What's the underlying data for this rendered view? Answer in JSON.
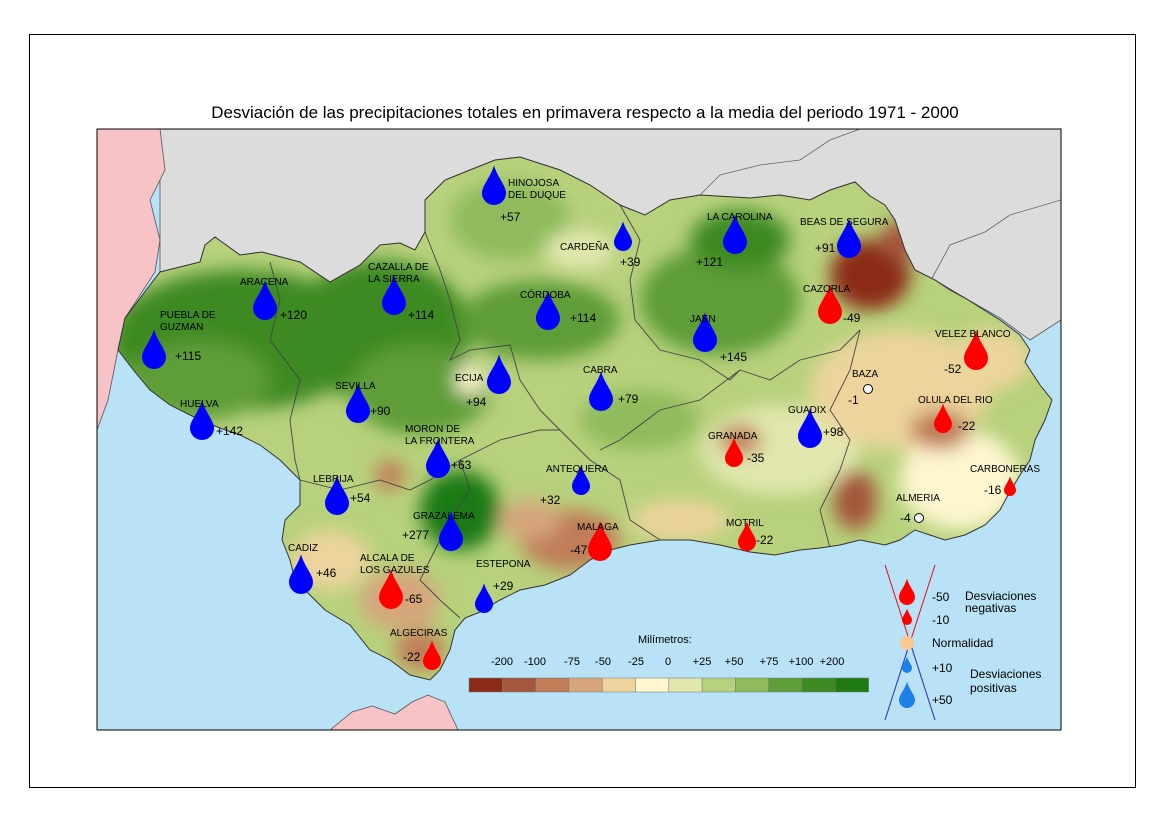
{
  "title": "Desviación de las precipitaciones totales en primavera respecto a la media del periodo 1971 - 2000",
  "colors": {
    "sea": "#b9e2f6",
    "portugal": "#f8c3c7",
    "spain": "#dcdcdc",
    "morocco": "#dcdcdc",
    "wet": "#0000ff",
    "dry": "#ff0000",
    "normal": "#f9c98f",
    "legend_wet": "#1e7fe8"
  },
  "stations": [
    {
      "name": "HINOJOSA DEL DUQUE",
      "lines": [
        "HINOJOSA",
        "DEL DUQUE"
      ],
      "value": "+57",
      "sign": "wet",
      "size": 3
    },
    {
      "name": "CARDEÑA",
      "lines": [
        "CARDEÑA"
      ],
      "value": "+39",
      "sign": "wet",
      "size": 2
    },
    {
      "name": "LA CAROLINA",
      "lines": [
        "LA CAROLINA"
      ],
      "value": "+121",
      "sign": "wet",
      "size": 3
    },
    {
      "name": "BEAS DE SEGURA",
      "lines": [
        "BEAS DE SEGURA"
      ],
      "value": "+91",
      "sign": "wet",
      "size": 3
    },
    {
      "name": "ARACENA",
      "lines": [
        "ARACENA"
      ],
      "value": "+120",
      "sign": "wet",
      "size": 3
    },
    {
      "name": "CAZALLA DE LA SIERRA",
      "lines": [
        "CAZALLA DE",
        "LA SIERRA"
      ],
      "value": "+114",
      "sign": "wet",
      "size": 3
    },
    {
      "name": "CÓRDOBA",
      "lines": [
        "CÓRDOBA"
      ],
      "value": "+114",
      "sign": "wet",
      "size": 3
    },
    {
      "name": "CAZORLA",
      "lines": [
        "CAZORLA"
      ],
      "value": "-49",
      "sign": "dry",
      "size": 3
    },
    {
      "name": "PUEBLA DE GUZMAN",
      "lines": [
        "PUEBLA DE",
        "GUZMAN"
      ],
      "value": "+115",
      "sign": "wet",
      "size": 3
    },
    {
      "name": "JAEN",
      "lines": [
        "JAEN"
      ],
      "value": "+145",
      "sign": "wet",
      "size": 3
    },
    {
      "name": "VELEZ BLANCO",
      "lines": [
        "VELEZ BLANCO"
      ],
      "value": "-52",
      "sign": "dry",
      "size": 3
    },
    {
      "name": "ECIJA",
      "lines": [
        "ECIJA"
      ],
      "value": "+94",
      "sign": "wet",
      "size": 3
    },
    {
      "name": "CABRA",
      "lines": [
        "CABRA"
      ],
      "value": "+79",
      "sign": "wet",
      "size": 3
    },
    {
      "name": "BAZA",
      "lines": [
        "BAZA"
      ],
      "value": "-1",
      "sign": "normal",
      "size": 0
    },
    {
      "name": "SEVILLA",
      "lines": [
        "SEVILLA"
      ],
      "value": "+90",
      "sign": "wet",
      "size": 3
    },
    {
      "name": "OLULA DEL RIO",
      "lines": [
        "OLULA DEL RIO"
      ],
      "value": "-22",
      "sign": "dry",
      "size": 2
    },
    {
      "name": "HUELVA",
      "lines": [
        "HUELVA"
      ],
      "value": "+142",
      "sign": "wet",
      "size": 3
    },
    {
      "name": "GUADIX",
      "lines": [
        "GUADIX"
      ],
      "value": "+98",
      "sign": "wet",
      "size": 3
    },
    {
      "name": "GRANADA",
      "lines": [
        "GRANADA"
      ],
      "value": "-35",
      "sign": "dry",
      "size": 2
    },
    {
      "name": "MORON DE LA FRONTERA",
      "lines": [
        "MORON DE",
        "LA FRONTERA"
      ],
      "value": "+63",
      "sign": "wet",
      "size": 3
    },
    {
      "name": "CARBONERAS",
      "lines": [
        "CARBONERAS"
      ],
      "value": "-16",
      "sign": "dry",
      "size": 1
    },
    {
      "name": "ANTEQUERA",
      "lines": [
        "ANTEQUERA"
      ],
      "value": "+32",
      "sign": "wet",
      "size": 2
    },
    {
      "name": "LEBRIJA",
      "lines": [
        "LEBRIJA"
      ],
      "value": "+54",
      "sign": "wet",
      "size": 3
    },
    {
      "name": "ALMERIA",
      "lines": [
        "ALMERIA"
      ],
      "value": "-4",
      "sign": "normal",
      "size": 0
    },
    {
      "name": "GRAZALEMA",
      "lines": [
        "GRAZALEMA"
      ],
      "value": "+277",
      "sign": "wet",
      "size": 3
    },
    {
      "name": "MOTRIL",
      "lines": [
        "MOTRIL"
      ],
      "value": "-22",
      "sign": "dry",
      "size": 2
    },
    {
      "name": "MALAGA",
      "lines": [
        "MALAGA"
      ],
      "value": "-47",
      "sign": "dry",
      "size": 3
    },
    {
      "name": "CADIZ",
      "lines": [
        "CADIZ"
      ],
      "value": "+46",
      "sign": "wet",
      "size": 3
    },
    {
      "name": "ALCALA DE LOS GAZULES",
      "lines": [
        "ALCALA DE",
        "LOS GAZULES"
      ],
      "value": "-65",
      "sign": "dry",
      "size": 3
    },
    {
      "name": "ESTEPONA",
      "lines": [
        "ESTEPONA"
      ],
      "value": "+29",
      "sign": "wet",
      "size": 2
    },
    {
      "name": "ALGECIRAS",
      "lines": [
        "ALGECIRAS"
      ],
      "value": "-22",
      "sign": "dry",
      "size": 2
    }
  ],
  "scale": {
    "title": "Milímetros:",
    "labels": [
      "-200",
      "-100",
      "-75",
      "-50",
      "-25",
      "0",
      "+25",
      "+50",
      "+75",
      "+100",
      "+200"
    ],
    "colors": [
      "#8b2a16",
      "#a4573a",
      "#c07d58",
      "#d6a57b",
      "#ecd49c",
      "#fdf6cf",
      "#e1e7ad",
      "#b7d17c",
      "#8fbb5b",
      "#5f9d39",
      "#3d8a22",
      "#1f7a14"
    ]
  },
  "legend": {
    "items": [
      {
        "value": "-50",
        "sign": "dry",
        "size": 3
      },
      {
        "value": "-10",
        "sign": "dry",
        "size": 1
      },
      {
        "value": "Normalidad",
        "sign": "normal",
        "size": 0
      },
      {
        "value": "+10",
        "sign": "wet",
        "size": 1
      },
      {
        "value": "+50",
        "sign": "wet",
        "size": 3
      }
    ],
    "negative_label": [
      "Desviaciones",
      "negativas"
    ],
    "positive_label": [
      "Desviaciones",
      "positivas"
    ]
  }
}
